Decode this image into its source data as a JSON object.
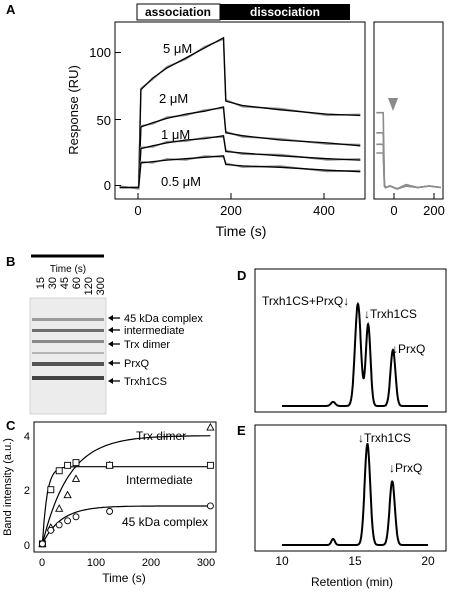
{
  "panels": {
    "A": {
      "letter": "A",
      "banner": {
        "association": "association",
        "dissociation": "dissociation"
      },
      "ylabel": "Response (RU)",
      "xlabel": "Time (s)",
      "y_ticks": [
        "0",
        "50",
        "100"
      ],
      "x_ticks": [
        "0",
        "200",
        "400"
      ],
      "inset_x_ticks": [
        "0",
        "200"
      ],
      "concentration_labels": [
        "5 μM",
        "2 μM",
        "1 μM",
        "0.5 μM"
      ]
    },
    "B": {
      "letter": "B",
      "time_label": "Time (s)",
      "lane_labels": [
        "15",
        "30",
        "45",
        "60",
        "120",
        "300"
      ],
      "band_labels": [
        "45 kDa complex",
        "intermediate",
        "Trx dimer",
        "PrxQ",
        "Trxh1CS"
      ]
    },
    "C": {
      "letter": "C",
      "ylabel": "Band intensity (a.u.)",
      "xlabel": "Time (s)",
      "y_ticks": [
        "0",
        "2",
        "4"
      ],
      "x_ticks": [
        "0",
        "100",
        "200",
        "300"
      ],
      "series_labels": [
        "Trx dimer",
        "Intermediate",
        "45 kDa complex"
      ]
    },
    "D": {
      "letter": "D",
      "peak_labels": {
        "complex": "Trxh1CS+PrxQ↓",
        "trx": "↓Trxh1CS",
        "prx": "↓PrxQ"
      }
    },
    "E": {
      "letter": "E",
      "peak_labels": {
        "trx": "↓Trxh1CS",
        "prx": "↓PrxQ"
      },
      "xlabel": "Retention (min)",
      "x_ticks": [
        "10",
        "15",
        "20"
      ]
    }
  },
  "chart_data": [
    {
      "panel": "A",
      "type": "line",
      "xlabel": "Time (s)",
      "ylabel": "Response (RU)",
      "xlim": [
        -50,
        480
      ],
      "ylim": [
        -8,
        115
      ],
      "association_end": 180,
      "series": [
        {
          "name": "5 μM",
          "x": [
            -40,
            0,
            5,
            30,
            60,
            100,
            140,
            180,
            185,
            220,
            300,
            400,
            470
          ],
          "values": [
            0,
            0,
            68,
            76,
            83,
            90,
            97,
            104,
            60,
            57,
            54,
            51,
            50
          ]
        },
        {
          "name": "2 μM",
          "x": [
            -40,
            0,
            5,
            30,
            60,
            100,
            140,
            180,
            185,
            220,
            300,
            400,
            470
          ],
          "values": [
            0,
            0,
            42,
            45,
            48,
            51,
            53,
            56,
            38,
            36,
            33,
            31,
            29
          ]
        },
        {
          "name": "1 μM",
          "x": [
            -40,
            0,
            5,
            30,
            60,
            100,
            140,
            180,
            185,
            220,
            300,
            400,
            470
          ],
          "values": [
            0,
            0,
            27,
            29,
            31,
            33,
            34,
            36,
            25,
            24,
            22,
            20,
            19
          ]
        },
        {
          "name": "0.5 μM",
          "x": [
            -40,
            0,
            5,
            30,
            60,
            100,
            140,
            180,
            185,
            220,
            300,
            400,
            470
          ],
          "values": [
            0,
            0,
            17,
            18,
            19,
            20,
            21,
            22,
            16,
            15,
            14,
            12,
            11
          ]
        }
      ],
      "inset": {
        "xlim": [
          -40,
          260
        ],
        "series": [
          {
            "x": [
              -30,
              -5,
              0,
              5,
              10,
              30,
              60,
              100,
              150,
              200,
              250
            ],
            "values": [
              52,
              52,
              52,
              2,
              0,
              1,
              -1,
              2,
              0,
              1,
              0
            ]
          },
          {
            "x": [
              -30,
              -5,
              0,
              5,
              10,
              30,
              60,
              100,
              150,
              200,
              250
            ],
            "values": [
              38,
              38,
              38,
              2,
              0,
              1,
              -1,
              1,
              0,
              1,
              0
            ]
          },
          {
            "x": [
              -30,
              -5,
              0,
              5,
              10,
              30,
              60,
              100,
              150,
              200,
              250
            ],
            "values": [
              30,
              30,
              30,
              1,
              0,
              1,
              -1,
              1,
              0,
              1,
              0
            ]
          },
          {
            "x": [
              -30,
              -5,
              0,
              5,
              10,
              30,
              60,
              100,
              150,
              200,
              250
            ],
            "values": [
              24,
              24,
              24,
              1,
              0,
              1,
              -1,
              1,
              0,
              1,
              0
            ]
          }
        ]
      }
    },
    {
      "panel": "C",
      "type": "scatter",
      "xlabel": "Time (s)",
      "ylabel": "Band intensity (a.u.)",
      "xlim": [
        -15,
        310
      ],
      "ylim": [
        -0.3,
        4.5
      ],
      "series": [
        {
          "name": "Trx dimer",
          "marker": "triangle",
          "x": [
            0,
            15,
            30,
            45,
            60,
            120,
            300
          ],
          "values": [
            0,
            0.6,
            1.3,
            1.8,
            2.4,
            2.9,
            4.3
          ],
          "fit": {
            "a": 4.0,
            "k": 0.021
          }
        },
        {
          "name": "Intermediate",
          "marker": "square",
          "x": [
            0,
            15,
            30,
            45,
            60,
            120,
            300
          ],
          "values": [
            0,
            2.0,
            2.7,
            2.9,
            3.0,
            2.9,
            2.9
          ],
          "fit": {
            "a": 2.85,
            "k": 0.12
          }
        },
        {
          "name": "45 kDa complex",
          "marker": "circle",
          "x": [
            0,
            15,
            30,
            45,
            60,
            120,
            300
          ],
          "values": [
            0,
            0.5,
            0.7,
            0.85,
            1.0,
            1.2,
            1.4
          ],
          "fit": {
            "a": 1.4,
            "k": 0.03
          }
        }
      ]
    },
    {
      "panel": "D",
      "type": "line",
      "xlim": [
        10,
        20
      ],
      "peaks": [
        {
          "x": 13.5,
          "h": 0.04,
          "w": 0.15
        },
        {
          "x": 15.2,
          "h": 1.0,
          "w": 0.2
        },
        {
          "x": 15.9,
          "h": 0.8,
          "w": 0.16
        },
        {
          "x": 17.6,
          "h": 0.55,
          "w": 0.17
        }
      ]
    },
    {
      "panel": "E",
      "type": "line",
      "xlabel": "Retention (min)",
      "xlim": [
        10,
        20
      ],
      "peaks": [
        {
          "x": 13.5,
          "h": 0.06,
          "w": 0.12
        },
        {
          "x": 15.85,
          "h": 1.0,
          "w": 0.19
        },
        {
          "x": 17.55,
          "h": 0.63,
          "w": 0.18
        }
      ]
    }
  ]
}
